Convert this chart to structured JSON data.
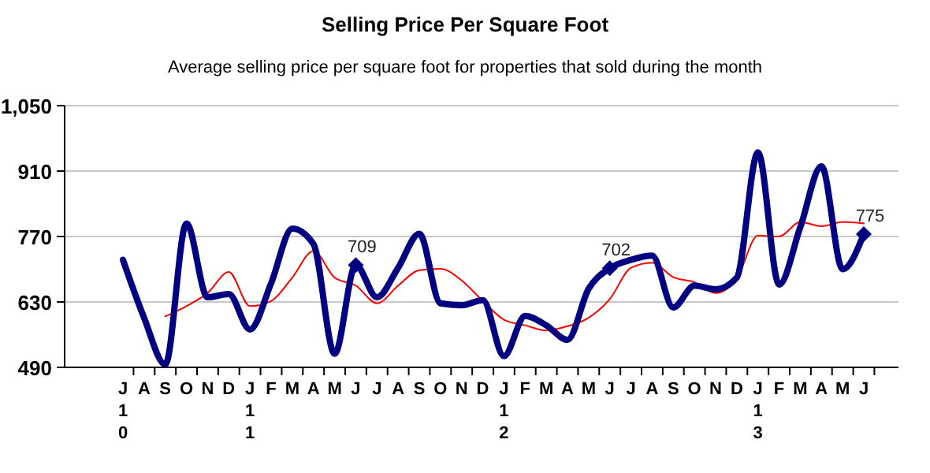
{
  "chart_data": {
    "type": "line",
    "title": "Selling Price Per Square Foot",
    "subtitle": "Average selling price per square foot for properties that sold during the month",
    "categories": [
      "J\n1\n0",
      "A",
      "S",
      "O",
      "N",
      "D",
      "J\n1\n1",
      "F",
      "M",
      "A",
      "M",
      "J",
      "J",
      "A",
      "S",
      "O",
      "N",
      "D",
      "J\n1\n2",
      "F",
      "M",
      "A",
      "M",
      "J",
      "J",
      "A",
      "S",
      "O",
      "N",
      "D",
      "J\n1\n3",
      "F",
      "M",
      "A",
      "M",
      "J"
    ],
    "series": [
      {
        "color": "#000080",
        "marker": "none",
        "values": [
          720,
          596,
          496,
          798,
          640,
          647,
          571,
          670,
          787,
          754,
          519,
          709,
          640,
          703,
          776,
          627,
          623,
          634,
          514,
          600,
          580,
          549,
          658,
          702,
          720,
          729,
          618,
          665,
          657,
          682,
          950,
          667,
          790,
          920,
          700,
          775
        ]
      },
      {
        "type": "scatter",
        "color": "#000080",
        "marker": "diamond",
        "values": [
          null,
          null,
          null,
          null,
          null,
          null,
          null,
          null,
          null,
          null,
          null,
          709,
          null,
          null,
          null,
          null,
          null,
          null,
          null,
          null,
          null,
          null,
          null,
          702,
          null,
          null,
          null,
          null,
          null,
          null,
          null,
          null,
          null,
          null,
          null,
          775
        ],
        "value_labels": [
          null,
          null,
          null,
          null,
          null,
          null,
          null,
          null,
          null,
          null,
          null,
          "709",
          null,
          null,
          null,
          null,
          null,
          null,
          null,
          null,
          null,
          null,
          null,
          "702",
          null,
          null,
          null,
          null,
          null,
          null,
          null,
          null,
          null,
          null,
          null,
          "775"
        ]
      },
      {
        "color": "#ff0000",
        "marker": "none",
        "values": [
          null,
          null,
          599,
          621,
          649,
          694,
          621,
          632,
          682,
          739,
          682,
          665,
          627,
          665,
          698,
          701,
          676,
          632,
          592,
          580,
          569,
          578,
          596,
          636,
          703,
          714,
          683,
          672,
          649,
          680,
          772,
          770,
          801,
          792,
          801,
          798
        ]
      }
    ],
    "ylim": [
      490,
      1050
    ],
    "yticks": [
      490,
      630,
      770,
      910,
      {
        "value": 1050,
        "label": "1,050"
      }
    ],
    "grid": "y",
    "line_style": "solid"
  }
}
